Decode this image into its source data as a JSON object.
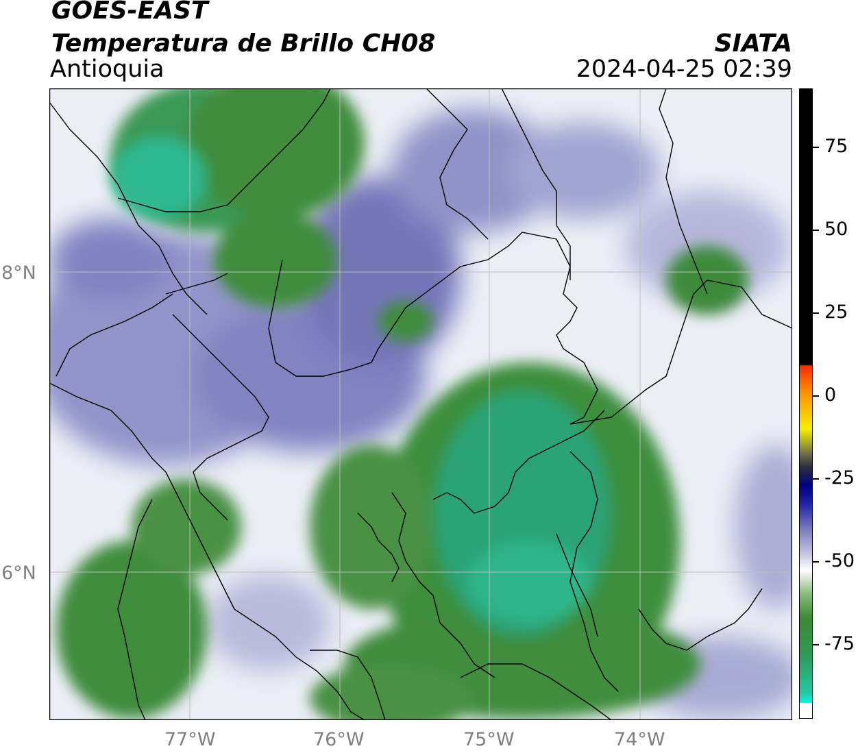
{
  "header": {
    "satellite": "GOES-EAST",
    "product": "Temperatura de Brillo CH08",
    "region": "Antioquia",
    "organization": "SIATA",
    "datetime": "2024-04-25 02:39"
  },
  "map": {
    "y_axis_labels": [
      "8°N",
      "6°N"
    ],
    "x_axis_labels": [
      "77°W",
      "76°W",
      "75°W",
      "74°W"
    ],
    "colors": {
      "cold_cloud_green": "#2e9b57",
      "deep_cold_cyan": "#28c6a0",
      "dark_green": "#3c8a3a",
      "mid_purple": "#7678b8",
      "pale_lavender": "#c8c9e4",
      "clear_white": "#ffffff",
      "gridline": "#bdbdbd",
      "border_line": "#000000"
    }
  },
  "colorbar": {
    "label_values": [
      "75",
      "50",
      "25",
      "0",
      "-25",
      "-50",
      "-75"
    ]
  }
}
